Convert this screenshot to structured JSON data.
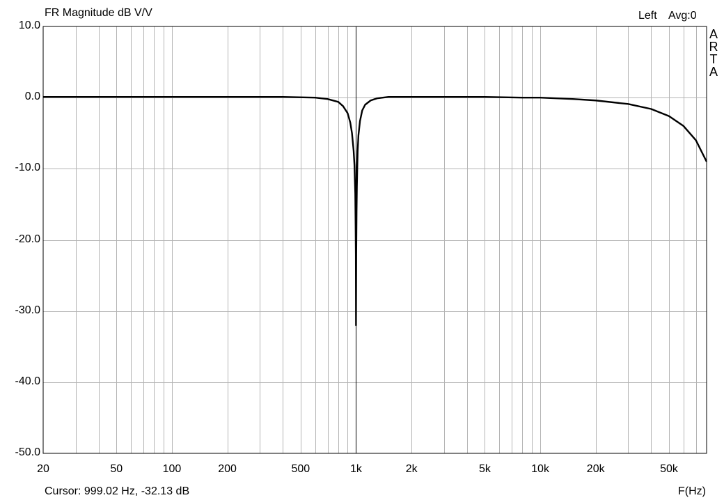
{
  "header": {
    "title": "FR Magnitude dB V/V",
    "channel": "Left",
    "avg": "Avg:0"
  },
  "brand": [
    "A",
    "R",
    "T",
    "A"
  ],
  "footer": {
    "cursor": "Cursor: 999.02 Hz, -32.13 dB",
    "x_unit": "F(Hz)"
  },
  "colors": {
    "background": "#ffffff",
    "grid": "#b4b4b4",
    "frame": "#000000",
    "trace": "#000000"
  },
  "chart_data": {
    "type": "line",
    "title": "FR Magnitude dB V/V",
    "xlabel": "F(Hz)",
    "ylabel": "",
    "xscale": "log",
    "xlim": [
      20,
      80000
    ],
    "ylim": [
      -50,
      10
    ],
    "grid": true,
    "y_ticks": [
      10,
      0,
      -10,
      -20,
      -30,
      -40,
      -50
    ],
    "y_tick_labels": [
      "10.0",
      "0.0",
      "-10.0",
      "-20.0",
      "-30.0",
      "-40.0",
      "-50.0"
    ],
    "x_ticks": [
      20,
      50,
      100,
      200,
      500,
      1000,
      2000,
      5000,
      10000,
      20000,
      50000
    ],
    "x_tick_labels": [
      "20",
      "50",
      "100",
      "200",
      "500",
      "1k",
      "2k",
      "5k",
      "10k",
      "20k",
      "50k"
    ],
    "cursor_x": 1000,
    "series": [
      {
        "x": [
          20,
          50,
          100,
          200,
          400,
          600,
          700,
          800,
          850,
          900,
          930,
          950,
          970,
          980,
          985,
          990,
          994,
          997,
          999,
          1002,
          1006,
          1010,
          1015,
          1020,
          1030,
          1050,
          1080,
          1120,
          1200,
          1300,
          1500,
          2000,
          3000,
          5000,
          8000,
          10000,
          15000,
          20000,
          30000,
          40000,
          50000,
          60000,
          70000,
          80000
        ],
        "y": [
          0.1,
          0.1,
          0.1,
          0.1,
          0.1,
          0.0,
          -0.2,
          -0.6,
          -1.2,
          -2.2,
          -3.5,
          -5.0,
          -7.5,
          -9.5,
          -11.5,
          -13.5,
          -18.0,
          -22.0,
          -32.0,
          -22.0,
          -16.0,
          -12.5,
          -9.8,
          -7.5,
          -5.3,
          -3.3,
          -1.8,
          -1.0,
          -0.4,
          -0.1,
          0.1,
          0.1,
          0.1,
          0.1,
          0.0,
          0.0,
          -0.2,
          -0.4,
          -0.9,
          -1.6,
          -2.6,
          -4.0,
          -6.0,
          -9.0
        ]
      }
    ]
  }
}
